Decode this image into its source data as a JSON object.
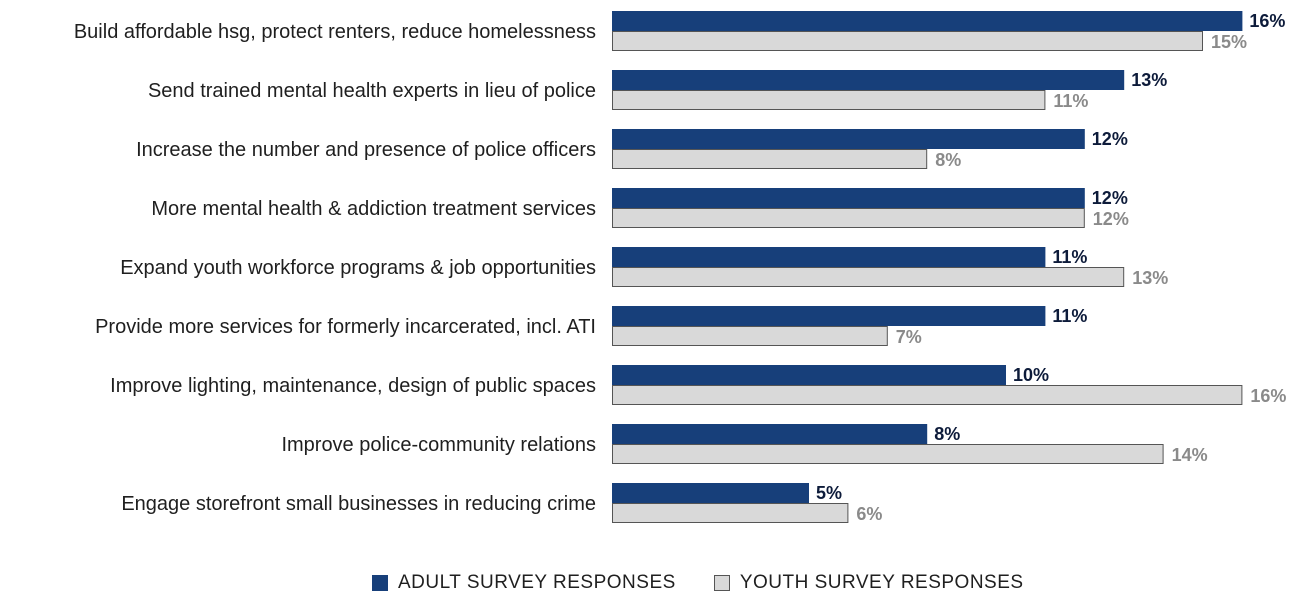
{
  "colors": {
    "adult": "#173f7a",
    "youth": "#d9d9d9",
    "youth_border": "#555555",
    "adult_label": "#0d1b3a",
    "youth_label": "#8a8a8a"
  },
  "chart_data": {
    "type": "bar",
    "orientation": "horizontal",
    "categories": [
      "Build affordable hsg, protect renters, reduce homelessness",
      "Send trained mental health experts in lieu of police",
      "Increase the number and presence of police officers",
      "More mental health & addiction treatment services",
      "Expand youth workforce programs & job opportunities",
      "Provide more services for formerly incarcerated, incl. ATI",
      "Improve lighting, maintenance, design of public spaces",
      "Improve police-community relations",
      "Engage storefront small businesses in reducing crime"
    ],
    "series": [
      {
        "name": "ADULT SURVEY RESPONSES",
        "values": [
          16,
          13,
          12,
          12,
          11,
          11,
          10,
          8,
          5
        ],
        "labels": [
          "16%",
          "13%",
          "12%",
          "12%",
          "11%",
          "11%",
          "10%",
          "8%",
          "5%"
        ]
      },
      {
        "name": "YOUTH SURVEY RESPONSES",
        "values": [
          15,
          11,
          8,
          12,
          13,
          7,
          16,
          14,
          6
        ],
        "labels": [
          "15%",
          "11%",
          "8%",
          "12%",
          "13%",
          "7%",
          "16%",
          "14%",
          "6%"
        ]
      }
    ],
    "xlim": [
      0,
      16
    ],
    "grid": false,
    "legend_position": "bottom"
  }
}
